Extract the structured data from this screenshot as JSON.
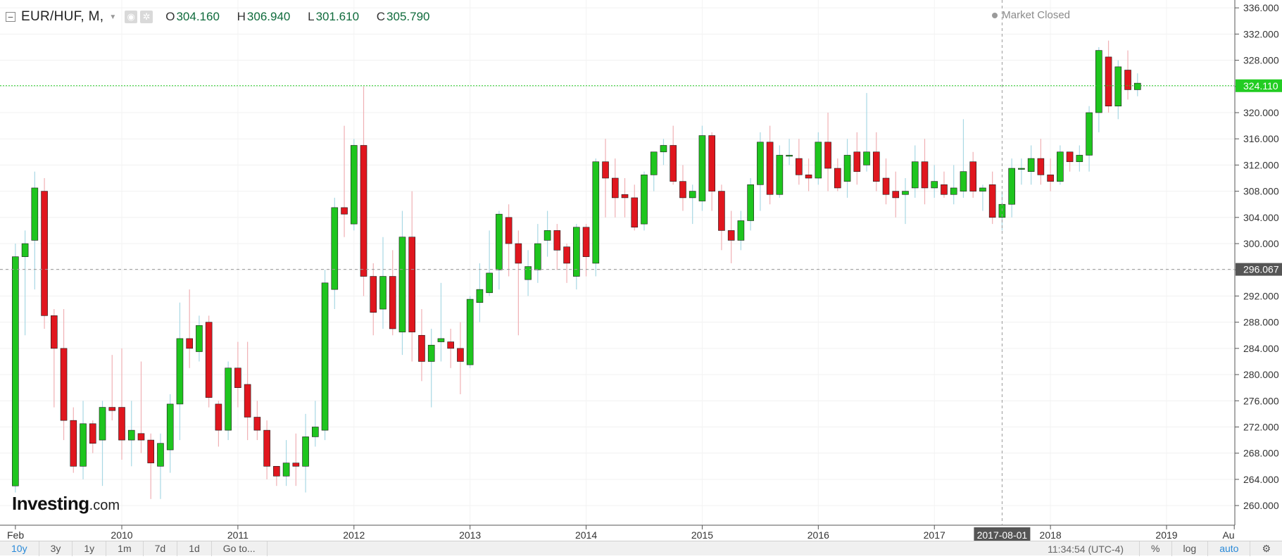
{
  "header": {
    "symbol": "EUR/HUF, M,",
    "ohlc": [
      {
        "label": "O",
        "value": "304.160"
      },
      {
        "label": "H",
        "value": "306.940"
      },
      {
        "label": "L",
        "value": "301.610"
      },
      {
        "label": "C",
        "value": "305.790"
      }
    ]
  },
  "status": {
    "market": "Market Closed"
  },
  "branding": {
    "logo_main": "Investing",
    "logo_suffix": ".com"
  },
  "toolbar": {
    "ranges": [
      "10y",
      "3y",
      "1y",
      "1m",
      "7d",
      "1d",
      "Go to..."
    ],
    "active_range": "10y",
    "time": "11:34:54 (UTC-4)",
    "right_buttons": [
      "%",
      "log",
      "auto"
    ],
    "active_right": "auto"
  },
  "colors": {
    "up": "#1ec51e",
    "down": "#e0161e",
    "current_line": "#22cc22",
    "crosshair_label": "#555555"
  },
  "chart_data": {
    "type": "candlestick",
    "title": "",
    "x_ticks": [
      "Feb",
      "2010",
      "2011",
      "2012",
      "2013",
      "2014",
      "2015",
      "2016",
      "2017",
      "2018",
      "2019",
      "Au"
    ],
    "y_ticks": [
      "260.000",
      "264.000",
      "268.000",
      "272.000",
      "276.000",
      "280.000",
      "284.000",
      "288.000",
      "292.000",
      "296.000",
      "300.000",
      "304.000",
      "308.000",
      "312.000",
      "316.000",
      "320.000",
      "324.000",
      "328.000",
      "332.000",
      "336.000"
    ],
    "ylim": [
      257,
      337.2
    ],
    "last_price": 324.11,
    "last_price_label": "324.110",
    "crosshair": {
      "date_label": "2017-08-01",
      "price": 296.067,
      "price_label": "296.067",
      "month_index": 102
    },
    "start_month": "2009-02",
    "candles": [
      [
        263,
        298,
        262,
        300
      ],
      [
        298,
        300,
        286,
        302
      ],
      [
        300.5,
        308.5,
        293,
        311
      ],
      [
        308,
        289,
        287,
        310
      ],
      [
        289,
        284,
        275,
        290
      ],
      [
        284,
        273,
        270,
        290
      ],
      [
        273,
        266,
        265,
        275
      ],
      [
        266,
        272.5,
        264,
        276
      ],
      [
        272.5,
        269.5,
        268,
        273
      ],
      [
        270,
        275,
        263,
        276
      ],
      [
        275,
        274.5,
        273,
        283
      ],
      [
        275,
        270,
        267,
        284
      ],
      [
        270,
        271.5,
        266,
        276
      ],
      [
        271,
        270,
        268,
        282
      ],
      [
        270,
        266.5,
        261,
        271
      ],
      [
        266,
        269.5,
        261,
        271
      ],
      [
        268.5,
        275.5,
        265,
        277
      ],
      [
        275.5,
        285.5,
        270,
        291
      ],
      [
        285.5,
        284,
        281,
        293
      ],
      [
        283.5,
        287.5,
        282,
        289
      ],
      [
        288,
        276.5,
        275,
        289
      ],
      [
        275.5,
        271.5,
        269,
        276
      ],
      [
        271.5,
        281,
        270,
        282
      ],
      [
        281,
        278,
        275,
        285
      ],
      [
        278.5,
        273.5,
        270,
        285
      ],
      [
        273.5,
        271.5,
        270,
        276
      ],
      [
        271.5,
        266,
        264,
        273
      ],
      [
        266,
        264.5,
        263,
        266
      ],
      [
        264.5,
        266.5,
        263,
        270
      ],
      [
        266.5,
        266,
        263,
        271
      ],
      [
        266,
        270.5,
        262,
        274
      ],
      [
        270.5,
        272,
        269,
        276
      ],
      [
        271.5,
        294,
        270,
        296
      ],
      [
        293,
        305.5,
        290,
        307
      ],
      [
        305.5,
        304.5,
        301,
        318
      ],
      [
        303,
        315,
        302,
        316
      ],
      [
        315,
        295,
        292,
        324
      ],
      [
        295,
        289.5,
        286,
        297
      ],
      [
        290,
        295,
        287,
        301
      ],
      [
        295,
        287,
        286,
        299
      ],
      [
        286.5,
        301,
        283,
        305
      ],
      [
        301,
        286.5,
        282,
        308
      ],
      [
        286,
        282,
        279,
        290
      ],
      [
        282,
        284.5,
        275,
        287
      ],
      [
        285,
        285.5,
        282,
        294
      ],
      [
        285,
        284,
        281,
        287
      ],
      [
        284,
        282,
        277,
        288
      ],
      [
        281.5,
        291.5,
        281,
        292
      ],
      [
        291,
        293,
        288,
        297
      ],
      [
        292.5,
        295.5,
        292,
        302
      ],
      [
        296,
        304.5,
        293,
        305
      ],
      [
        304,
        300,
        295,
        306
      ],
      [
        300,
        297,
        286,
        302
      ],
      [
        294.5,
        296.5,
        292,
        299
      ],
      [
        296,
        300,
        294,
        303
      ],
      [
        300.5,
        302,
        298,
        305
      ],
      [
        302,
        299,
        296,
        303
      ],
      [
        299.5,
        297,
        294,
        300
      ],
      [
        295,
        302.5,
        293,
        303
      ],
      [
        302.5,
        298,
        295,
        303
      ],
      [
        297,
        312.5,
        295,
        313
      ],
      [
        312.5,
        310,
        304,
        316
      ],
      [
        310,
        307,
        304,
        313
      ],
      [
        307.5,
        307,
        304,
        310
      ],
      [
        307,
        302.5,
        302,
        309
      ],
      [
        303,
        310.5,
        302,
        311
      ],
      [
        310.5,
        314,
        308,
        314
      ],
      [
        314,
        315,
        312,
        316
      ],
      [
        315,
        309.5,
        309,
        318
      ],
      [
        309.5,
        307,
        305,
        312
      ],
      [
        307,
        308,
        303,
        309
      ],
      [
        306.5,
        316.5,
        305,
        318
      ],
      [
        316.5,
        308,
        305,
        317
      ],
      [
        308,
        302,
        299,
        309
      ],
      [
        302,
        300.5,
        297,
        305
      ],
      [
        300.5,
        303.5,
        299,
        305
      ],
      [
        303.5,
        309,
        302,
        310
      ],
      [
        309,
        315.5,
        305,
        317
      ],
      [
        315.5,
        307.5,
        306,
        318
      ],
      [
        307.5,
        313.5,
        307,
        315
      ],
      [
        313.5,
        313.5,
        312,
        316
      ],
      [
        313,
        310.5,
        309,
        316
      ],
      [
        310.5,
        310,
        308,
        313
      ],
      [
        310,
        315.5,
        309,
        317
      ],
      [
        315.5,
        311.5,
        308,
        320
      ],
      [
        311.5,
        308.5,
        308,
        313
      ],
      [
        309.5,
        313.5,
        307,
        316
      ],
      [
        314,
        311,
        309,
        317
      ],
      [
        312,
        314,
        311,
        323
      ],
      [
        314,
        309.5,
        308,
        317
      ],
      [
        310,
        307.5,
        306,
        313
      ],
      [
        308,
        307,
        304,
        311
      ],
      [
        307.5,
        308,
        303,
        310
      ],
      [
        308.5,
        312.5,
        307,
        315
      ],
      [
        312.5,
        308.5,
        306,
        316
      ],
      [
        308.5,
        309.5,
        307,
        312
      ],
      [
        309,
        307.5,
        307,
        311
      ],
      [
        307.5,
        308.5,
        306,
        312
      ],
      [
        308,
        311,
        307,
        319
      ],
      [
        312.5,
        308,
        307,
        314
      ],
      [
        308,
        308.5,
        305,
        309
      ],
      [
        309,
        304,
        303,
        311
      ],
      [
        304,
        306,
        302,
        308
      ],
      [
        306,
        311.5,
        304,
        313
      ],
      [
        311.5,
        311.5,
        309,
        313
      ],
      [
        311,
        313,
        309,
        315
      ],
      [
        313,
        310.5,
        309,
        316
      ],
      [
        310.5,
        309.5,
        308,
        313
      ],
      [
        309.5,
        314,
        309,
        315
      ],
      [
        314,
        312.5,
        311,
        314
      ],
      [
        312.5,
        313.5,
        311,
        315
      ],
      [
        313.5,
        320,
        311,
        321
      ],
      [
        320,
        329.5,
        317,
        330
      ],
      [
        328.5,
        321,
        320,
        331
      ],
      [
        321,
        327,
        319,
        328
      ],
      [
        326.5,
        323.5,
        322,
        329.5
      ],
      [
        323.5,
        324.5,
        322.5,
        326
      ]
    ]
  }
}
